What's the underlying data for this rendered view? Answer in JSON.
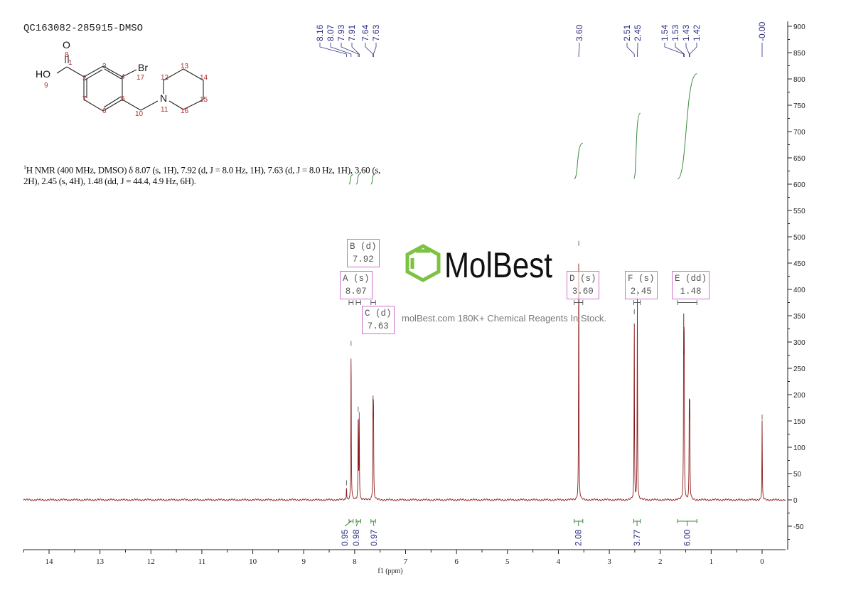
{
  "sample_id": "QC163082-285915-DMSO",
  "nmr_description": {
    "prefix_sup": "1",
    "text_line1": "H NMR (400 MHz, DMSO) δ 8.07 (s, 1H), 7.92 (d, J = 8.0 Hz, 1H), 7.63 (d, J = 8.0 Hz, 1H), 3.60 (s,",
    "text_line2": "2H), 2.45 (s, 4H), 1.48 (dd, J = 44.4, 4.9 Hz, 6H)."
  },
  "structure": {
    "atoms": [
      "O",
      "HO",
      "Br",
      "N"
    ],
    "numbers": [
      "1",
      "2",
      "3",
      "4",
      "5",
      "6",
      "7",
      "8",
      "9",
      "10",
      "11",
      "12",
      "13",
      "14",
      "15",
      "16",
      "17"
    ]
  },
  "watermark": {
    "brand": "MolBest",
    "tagline": "molBest.com 180K+ Chemical Reagents In Stock.",
    "logo_color": "#7dc242"
  },
  "colors": {
    "spectrum": "#8b1a1a",
    "integral": "#3a8a3a",
    "peak_label": "#2a2a80",
    "multiplet_box": "#d070d0"
  },
  "chart_data": {
    "type": "line",
    "title": "",
    "xlabel": "f1 (ppm)",
    "ylabel": "",
    "xlim": [
      14.5,
      -0.45
    ],
    "ylim": [
      -80,
      910
    ],
    "x_reversed": true,
    "x_ticks": [
      "14",
      "13",
      "12",
      "11",
      "10",
      "9",
      "8",
      "7",
      "6",
      "5",
      "4",
      "3",
      "2",
      "1",
      "0"
    ],
    "y_ticks": [
      "900",
      "850",
      "800",
      "750",
      "700",
      "650",
      "600",
      "550",
      "500",
      "450",
      "400",
      "350",
      "300",
      "250",
      "200",
      "150",
      "100",
      "50",
      "0",
      "-50"
    ],
    "y_axis_position": "right",
    "grid": false,
    "peaks": [
      {
        "ppm": 8.16,
        "height": 25
      },
      {
        "ppm": 8.07,
        "height": 290
      },
      {
        "ppm": 7.93,
        "height": 165
      },
      {
        "ppm": 7.91,
        "height": 155
      },
      {
        "ppm": 7.64,
        "height": 178
      },
      {
        "ppm": 7.63,
        "height": 170
      },
      {
        "ppm": 3.6,
        "height": 480
      },
      {
        "ppm": 2.51,
        "height": 350
      },
      {
        "ppm": 2.45,
        "height": 385
      },
      {
        "ppm": 1.54,
        "height": 310
      },
      {
        "ppm": 1.53,
        "height": 300
      },
      {
        "ppm": 1.43,
        "height": 170
      },
      {
        "ppm": 1.42,
        "height": 160
      },
      {
        "ppm": 0.0,
        "height": 150
      }
    ],
    "peak_labels": [
      "8.16",
      "8.07",
      "7.93",
      "7.91",
      "7.64",
      "7.63",
      "3.60",
      "2.51",
      "2.45",
      "1.54",
      "1.53",
      "1.43",
      "1.42",
      "-0.00"
    ],
    "integrals": [
      {
        "value": "0.95",
        "from": 8.11,
        "to": 8.03,
        "curve_start": 600,
        "curve_end": 618
      },
      {
        "value": "0.98",
        "from": 7.97,
        "to": 7.88,
        "curve_start": 600,
        "curve_end": 620
      },
      {
        "value": "0.97",
        "from": 7.68,
        "to": 7.59,
        "curve_start": 600,
        "curve_end": 620
      },
      {
        "value": "2.08",
        "from": 3.69,
        "to": 3.52,
        "curve_start": 610,
        "curve_end": 678
      },
      {
        "value": "3.77",
        "from": 2.52,
        "to": 2.39,
        "curve_start": 610,
        "curve_end": 735
      },
      {
        "value": "6.00",
        "from": 1.66,
        "to": 1.28,
        "curve_start": 610,
        "curve_end": 810
      }
    ],
    "multiplets": [
      {
        "label": "A (s)",
        "shift": "8.07"
      },
      {
        "label": "B (d)",
        "shift": "7.92"
      },
      {
        "label": "C (d)",
        "shift": "7.63"
      },
      {
        "label": "D (s)",
        "shift": "3.60"
      },
      {
        "label": "F (s)",
        "shift": "2.45"
      },
      {
        "label": "E (dd)",
        "shift": "1.48"
      }
    ]
  }
}
